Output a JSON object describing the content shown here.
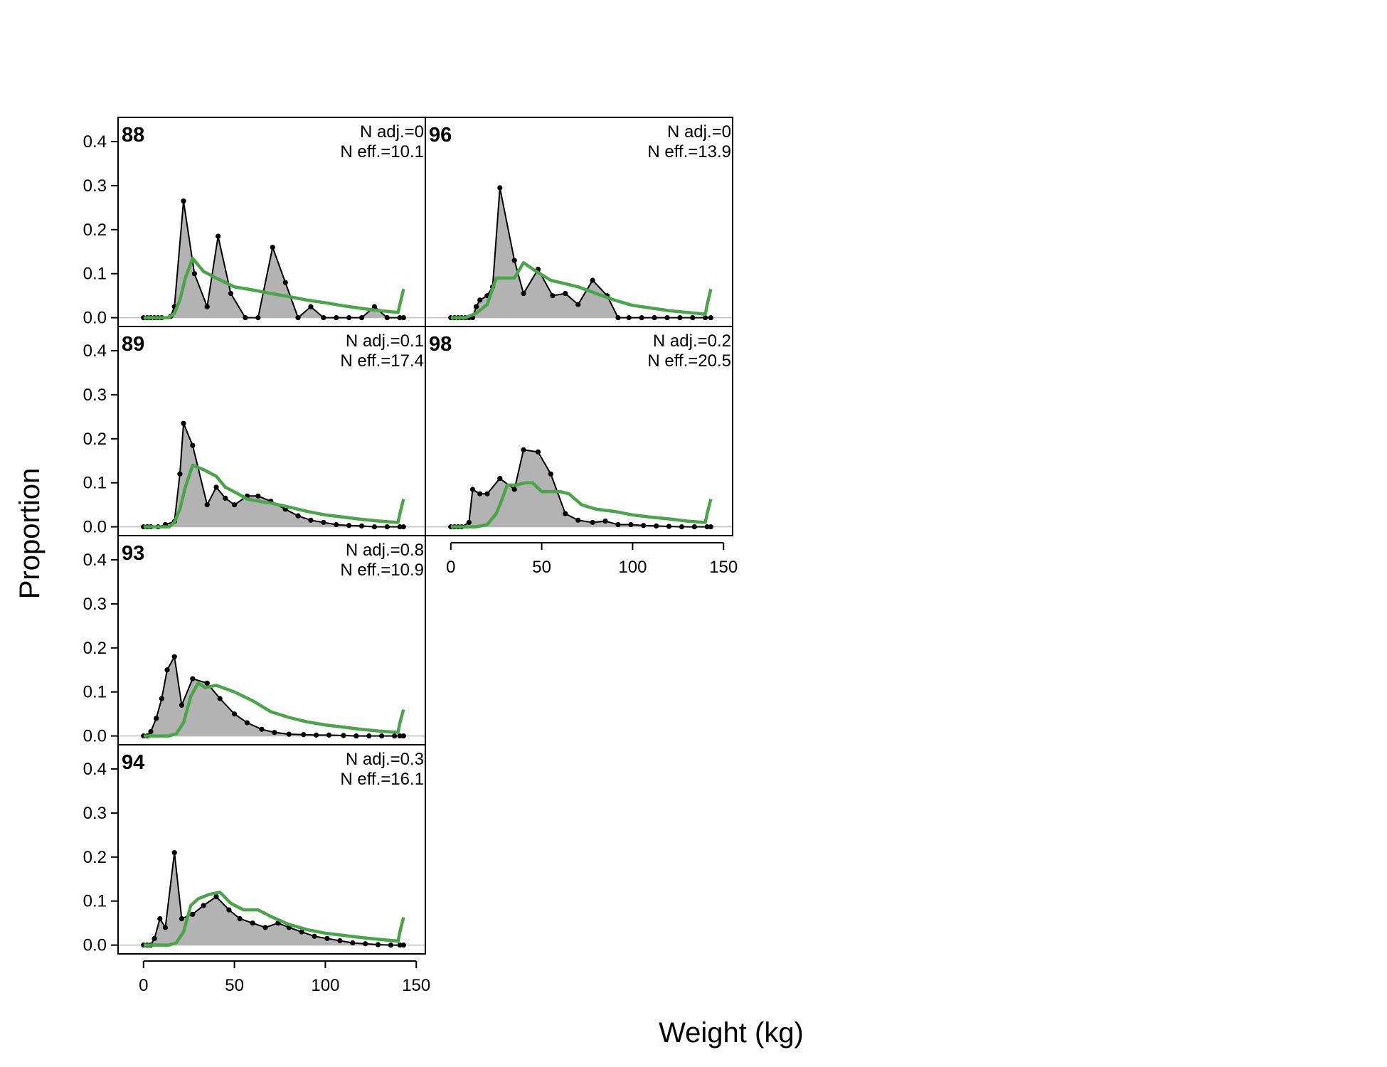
{
  "figure": {
    "xlabel": "Weight (kg)",
    "ylabel": "Proportion"
  },
  "chart_data": {
    "type": "area",
    "xlabel": "Weight (kg)",
    "ylabel": "Proportion",
    "xlim": [
      -14,
      155
    ],
    "ylim": [
      -0.02,
      0.455
    ],
    "x_ticks": [
      0,
      50,
      100,
      150
    ],
    "y_ticks": [
      0.0,
      0.1,
      0.2,
      0.3,
      0.4
    ],
    "x_tick_labels": [
      "0",
      "50",
      "100",
      "150"
    ],
    "y_tick_labels": [
      "0.0",
      "0.1",
      "0.2",
      "0.3",
      "0.4"
    ],
    "bins": [
      0,
      2,
      4,
      6,
      8,
      10,
      12,
      14,
      16,
      18,
      20,
      22,
      24,
      26,
      28,
      30,
      32,
      34,
      36,
      38,
      40,
      42,
      44,
      46,
      48,
      50,
      52,
      54,
      56,
      58,
      60,
      62,
      64,
      66,
      68,
      70,
      72,
      74,
      76,
      78,
      80,
      82,
      84,
      86,
      88,
      90,
      92,
      94,
      96,
      98,
      100,
      102,
      104,
      106,
      108,
      110,
      112,
      114,
      116,
      118,
      120,
      122,
      124,
      126,
      128,
      130,
      132,
      134,
      136,
      138,
      140,
      142
    ],
    "colors": {
      "observed_fill": "#b3b3b3",
      "observed_line": "#000000",
      "expected_line": "#4aa54a",
      "zero_line": "#bebebe"
    },
    "legend": "none",
    "grid": false,
    "panels": [
      {
        "id": "88",
        "label": "88",
        "n_adj": "N adj.=0",
        "n_eff": "N eff.=10.1",
        "observed": [
          [
            0,
            0
          ],
          [
            2,
            0
          ],
          [
            4,
            0
          ],
          [
            6,
            0
          ],
          [
            8,
            0
          ],
          [
            10,
            0
          ],
          [
            15,
            0.003
          ],
          [
            17,
            0.025
          ],
          [
            22,
            0.265
          ],
          [
            28,
            0.1
          ],
          [
            35,
            0.025
          ],
          [
            41,
            0.185
          ],
          [
            48,
            0.055
          ],
          [
            56,
            0
          ],
          [
            63,
            0
          ],
          [
            71,
            0.16
          ],
          [
            78,
            0.08
          ],
          [
            85,
            0
          ],
          [
            92,
            0.025
          ],
          [
            99,
            0
          ],
          [
            106,
            0
          ],
          [
            113,
            0
          ],
          [
            120,
            0
          ],
          [
            127,
            0.025
          ],
          [
            134,
            0
          ],
          [
            141,
            0
          ],
          [
            143,
            0
          ]
        ],
        "expected": [
          [
            0,
            0
          ],
          [
            14,
            0
          ],
          [
            17,
            0.01
          ],
          [
            20,
            0.04
          ],
          [
            23,
            0.09
          ],
          [
            27,
            0.135
          ],
          [
            33,
            0.105
          ],
          [
            40,
            0.09
          ],
          [
            50,
            0.07
          ],
          [
            60,
            0.063
          ],
          [
            70,
            0.055
          ],
          [
            80,
            0.048
          ],
          [
            90,
            0.04
          ],
          [
            100,
            0.034
          ],
          [
            110,
            0.027
          ],
          [
            120,
            0.021
          ],
          [
            130,
            0.016
          ],
          [
            140,
            0.012
          ],
          [
            141,
            0.03
          ],
          [
            143,
            0.065
          ]
        ]
      },
      {
        "id": "96",
        "label": "96",
        "n_adj": "N adj.=0",
        "n_eff": "N eff.=13.9",
        "observed": [
          [
            0,
            0
          ],
          [
            2,
            0
          ],
          [
            4,
            0
          ],
          [
            6,
            0
          ],
          [
            8,
            0
          ],
          [
            10,
            0
          ],
          [
            12,
            0
          ],
          [
            14,
            0.025
          ],
          [
            16,
            0.04
          ],
          [
            20,
            0.05
          ],
          [
            23,
            0.07
          ],
          [
            27,
            0.295
          ],
          [
            35,
            0.13
          ],
          [
            40,
            0.055
          ],
          [
            48,
            0.11
          ],
          [
            56,
            0.05
          ],
          [
            63,
            0.055
          ],
          [
            70,
            0.03
          ],
          [
            78,
            0.085
          ],
          [
            86,
            0.05
          ],
          [
            92,
            0
          ],
          [
            98,
            0
          ],
          [
            105,
            0
          ],
          [
            112,
            0
          ],
          [
            119,
            0
          ],
          [
            126,
            0
          ],
          [
            133,
            0
          ],
          [
            140,
            0
          ],
          [
            143,
            0
          ]
        ],
        "expected": [
          [
            0,
            0
          ],
          [
            8,
            0
          ],
          [
            14,
            0.01
          ],
          [
            20,
            0.03
          ],
          [
            25,
            0.09
          ],
          [
            30,
            0.09
          ],
          [
            35,
            0.09
          ],
          [
            40,
            0.125
          ],
          [
            47,
            0.105
          ],
          [
            55,
            0.085
          ],
          [
            60,
            0.08
          ],
          [
            70,
            0.07
          ],
          [
            80,
            0.055
          ],
          [
            90,
            0.04
          ],
          [
            100,
            0.028
          ],
          [
            110,
            0.022
          ],
          [
            120,
            0.016
          ],
          [
            130,
            0.012
          ],
          [
            140,
            0.008
          ],
          [
            141,
            0.03
          ],
          [
            143,
            0.065
          ]
        ]
      },
      {
        "id": "89",
        "label": "89",
        "n_adj": "N adj.=0.1",
        "n_eff": "N eff.=17.4",
        "observed": [
          [
            0,
            0
          ],
          [
            2,
            0
          ],
          [
            4,
            0
          ],
          [
            8,
            0
          ],
          [
            12,
            0.005
          ],
          [
            17,
            0.012
          ],
          [
            20,
            0.12
          ],
          [
            22,
            0.235
          ],
          [
            27,
            0.185
          ],
          [
            35,
            0.05
          ],
          [
            40,
            0.09
          ],
          [
            45,
            0.065
          ],
          [
            50,
            0.05
          ],
          [
            57,
            0.07
          ],
          [
            63,
            0.07
          ],
          [
            70,
            0.058
          ],
          [
            78,
            0.04
          ],
          [
            85,
            0.025
          ],
          [
            92,
            0.015
          ],
          [
            99,
            0.01
          ],
          [
            106,
            0.005
          ],
          [
            113,
            0.003
          ],
          [
            120,
            0.002
          ],
          [
            127,
            0
          ],
          [
            134,
            0
          ],
          [
            141,
            0
          ],
          [
            143,
            0
          ]
        ],
        "expected": [
          [
            0,
            0
          ],
          [
            14,
            0
          ],
          [
            17,
            0.01
          ],
          [
            20,
            0.04
          ],
          [
            23,
            0.09
          ],
          [
            27,
            0.14
          ],
          [
            33,
            0.13
          ],
          [
            40,
            0.115
          ],
          [
            45,
            0.09
          ],
          [
            52,
            0.075
          ],
          [
            57,
            0.063
          ],
          [
            65,
            0.057
          ],
          [
            70,
            0.054
          ],
          [
            80,
            0.045
          ],
          [
            90,
            0.035
          ],
          [
            100,
            0.027
          ],
          [
            110,
            0.022
          ],
          [
            120,
            0.017
          ],
          [
            130,
            0.013
          ],
          [
            140,
            0.01
          ],
          [
            141,
            0.03
          ],
          [
            143,
            0.063
          ]
        ]
      },
      {
        "id": "98",
        "label": "98",
        "n_adj": "N adj.=0.2",
        "n_eff": "N eff.=20.5",
        "observed": [
          [
            0,
            0
          ],
          [
            2,
            0
          ],
          [
            4,
            0
          ],
          [
            6,
            0
          ],
          [
            10,
            0.01
          ],
          [
            12,
            0.085
          ],
          [
            16,
            0.075
          ],
          [
            20,
            0.075
          ],
          [
            27,
            0.11
          ],
          [
            35,
            0.085
          ],
          [
            40,
            0.175
          ],
          [
            48,
            0.17
          ],
          [
            55,
            0.12
          ],
          [
            63,
            0.03
          ],
          [
            70,
            0.015
          ],
          [
            78,
            0.01
          ],
          [
            85,
            0.013
          ],
          [
            92,
            0.005
          ],
          [
            99,
            0.005
          ],
          [
            106,
            0.003
          ],
          [
            113,
            0.002
          ],
          [
            120,
            0.001
          ],
          [
            127,
            0
          ],
          [
            134,
            0
          ],
          [
            141,
            0
          ],
          [
            143,
            0
          ]
        ],
        "expected": [
          [
            0,
            0
          ],
          [
            14,
            0
          ],
          [
            20,
            0.005
          ],
          [
            25,
            0.03
          ],
          [
            28,
            0.06
          ],
          [
            31,
            0.095
          ],
          [
            36,
            0.095
          ],
          [
            41,
            0.1
          ],
          [
            45,
            0.1
          ],
          [
            50,
            0.08
          ],
          [
            60,
            0.08
          ],
          [
            65,
            0.075
          ],
          [
            72,
            0.05
          ],
          [
            80,
            0.04
          ],
          [
            90,
            0.035
          ],
          [
            100,
            0.027
          ],
          [
            110,
            0.022
          ],
          [
            120,
            0.018
          ],
          [
            130,
            0.013
          ],
          [
            140,
            0.01
          ],
          [
            141,
            0.03
          ],
          [
            143,
            0.063
          ]
        ]
      },
      {
        "id": "93",
        "label": "93",
        "n_adj": "N adj.=0.8",
        "n_eff": "N eff.=10.9",
        "observed": [
          [
            0,
            0
          ],
          [
            2,
            0
          ],
          [
            4,
            0.01
          ],
          [
            7,
            0.04
          ],
          [
            10,
            0.085
          ],
          [
            13,
            0.15
          ],
          [
            17,
            0.18
          ],
          [
            21,
            0.07
          ],
          [
            27,
            0.13
          ],
          [
            35,
            0.12
          ],
          [
            42,
            0.085
          ],
          [
            50,
            0.05
          ],
          [
            57,
            0.03
          ],
          [
            65,
            0.015
          ],
          [
            72,
            0.008
          ],
          [
            80,
            0.004
          ],
          [
            88,
            0.003
          ],
          [
            95,
            0.002
          ],
          [
            102,
            0.002
          ],
          [
            110,
            0.001
          ],
          [
            117,
            0
          ],
          [
            124,
            0
          ],
          [
            131,
            0
          ],
          [
            138,
            0
          ],
          [
            141,
            0
          ],
          [
            143,
            0
          ]
        ],
        "expected": [
          [
            0,
            0
          ],
          [
            14,
            0
          ],
          [
            18,
            0.005
          ],
          [
            22,
            0.03
          ],
          [
            26,
            0.09
          ],
          [
            30,
            0.12
          ],
          [
            34,
            0.11
          ],
          [
            40,
            0.115
          ],
          [
            50,
            0.1
          ],
          [
            60,
            0.08
          ],
          [
            70,
            0.055
          ],
          [
            80,
            0.042
          ],
          [
            90,
            0.032
          ],
          [
            100,
            0.025
          ],
          [
            110,
            0.02
          ],
          [
            120,
            0.015
          ],
          [
            130,
            0.011
          ],
          [
            140,
            0.008
          ],
          [
            141,
            0.03
          ],
          [
            143,
            0.06
          ]
        ]
      },
      {
        "id": "94",
        "label": "94",
        "n_adj": "N adj.=0.3",
        "n_eff": "N eff.=16.1",
        "observed": [
          [
            0,
            0
          ],
          [
            2,
            0
          ],
          [
            4,
            0
          ],
          [
            6,
            0.015
          ],
          [
            9,
            0.06
          ],
          [
            12,
            0.04
          ],
          [
            17,
            0.21
          ],
          [
            21,
            0.06
          ],
          [
            27,
            0.07
          ],
          [
            33,
            0.09
          ],
          [
            40,
            0.11
          ],
          [
            47,
            0.08
          ],
          [
            53,
            0.06
          ],
          [
            60,
            0.05
          ],
          [
            67,
            0.04
          ],
          [
            74,
            0.05
          ],
          [
            80,
            0.04
          ],
          [
            87,
            0.03
          ],
          [
            94,
            0.02
          ],
          [
            101,
            0.015
          ],
          [
            108,
            0.01
          ],
          [
            115,
            0.005
          ],
          [
            122,
            0.003
          ],
          [
            129,
            0.001
          ],
          [
            136,
            0
          ],
          [
            141,
            0
          ],
          [
            143,
            0
          ]
        ],
        "expected": [
          [
            0,
            0
          ],
          [
            14,
            0
          ],
          [
            18,
            0.005
          ],
          [
            22,
            0.03
          ],
          [
            26,
            0.09
          ],
          [
            30,
            0.105
          ],
          [
            36,
            0.115
          ],
          [
            42,
            0.12
          ],
          [
            48,
            0.095
          ],
          [
            55,
            0.08
          ],
          [
            63,
            0.08
          ],
          [
            70,
            0.065
          ],
          [
            80,
            0.047
          ],
          [
            90,
            0.035
          ],
          [
            100,
            0.027
          ],
          [
            110,
            0.022
          ],
          [
            120,
            0.017
          ],
          [
            130,
            0.013
          ],
          [
            140,
            0.009
          ],
          [
            141,
            0.03
          ],
          [
            143,
            0.063
          ]
        ]
      }
    ]
  }
}
